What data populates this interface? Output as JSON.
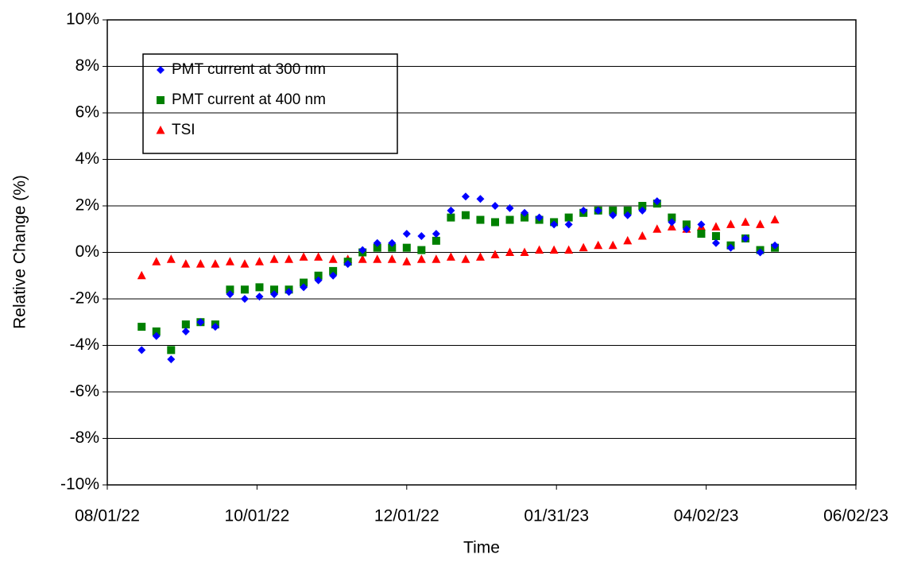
{
  "chart_data": {
    "type": "scatter",
    "x_label": "Time",
    "y_label": "Relative Change (%)",
    "xlim": [
      "2022-08-01",
      "2023-06-02"
    ],
    "xticks": [
      {
        "value": "2022-08-01",
        "label": "08/01/22"
      },
      {
        "value": "2022-10-01",
        "label": "10/01/22"
      },
      {
        "value": "2022-12-01",
        "label": "12/01/22"
      },
      {
        "value": "2023-01-31",
        "label": "01/31/23"
      },
      {
        "value": "2023-04-02",
        "label": "04/02/23"
      },
      {
        "value": "2023-06-02",
        "label": "06/02/23"
      }
    ],
    "ylim": [
      -10,
      10
    ],
    "yticks": [
      {
        "value": -10,
        "label": "-10%"
      },
      {
        "value": -8,
        "label": "-8%"
      },
      {
        "value": -6,
        "label": "-6%"
      },
      {
        "value": -4,
        "label": "-4%"
      },
      {
        "value": -2,
        "label": "-2%"
      },
      {
        "value": 0,
        "label": "0%"
      },
      {
        "value": 2,
        "label": "2%"
      },
      {
        "value": 4,
        "label": "4%"
      },
      {
        "value": 6,
        "label": "6%"
      },
      {
        "value": 8,
        "label": "8%"
      },
      {
        "value": 10,
        "label": "10%"
      }
    ],
    "grid": true,
    "legend": "upper left",
    "x": [
      "2022-08-15",
      "2022-08-21",
      "2022-08-27",
      "2022-09-02",
      "2022-09-08",
      "2022-09-14",
      "2022-09-20",
      "2022-09-26",
      "2022-10-02",
      "2022-10-08",
      "2022-10-14",
      "2022-10-20",
      "2022-10-26",
      "2022-11-01",
      "2022-11-07",
      "2022-11-13",
      "2022-11-19",
      "2022-11-25",
      "2022-12-01",
      "2022-12-07",
      "2022-12-13",
      "2022-12-19",
      "2022-12-25",
      "2022-12-31",
      "2023-01-06",
      "2023-01-12",
      "2023-01-18",
      "2023-01-24",
      "2023-01-30",
      "2023-02-05",
      "2023-02-11",
      "2023-02-17",
      "2023-02-23",
      "2023-03-01",
      "2023-03-07",
      "2023-03-13",
      "2023-03-19",
      "2023-03-25",
      "2023-03-31",
      "2023-04-06",
      "2023-04-12",
      "2023-04-18",
      "2023-04-24",
      "2023-04-30"
    ],
    "series": [
      {
        "name": "PMT current at 300 nm",
        "color": "#0000ff",
        "marker": "diamond",
        "values": [
          -4.2,
          -3.6,
          -4.6,
          -3.4,
          -3.0,
          -3.2,
          -1.8,
          -2.0,
          -1.9,
          -1.8,
          -1.7,
          -1.5,
          -1.2,
          -1.0,
          -0.5,
          0.1,
          0.4,
          0.4,
          0.8,
          0.7,
          0.8,
          1.8,
          2.4,
          2.3,
          2.0,
          1.9,
          1.7,
          1.5,
          1.2,
          1.2,
          1.8,
          1.8,
          1.6,
          1.6,
          1.8,
          2.2,
          1.3,
          1.0,
          1.2,
          0.4,
          0.2,
          0.6,
          0.0,
          0.3
        ]
      },
      {
        "name": "PMT current at 400 nm",
        "color": "#008000",
        "marker": "square",
        "values": [
          -3.2,
          -3.4,
          -4.2,
          -3.1,
          -3.0,
          -3.1,
          -1.6,
          -1.6,
          -1.5,
          -1.6,
          -1.6,
          -1.3,
          -1.0,
          -0.8,
          -0.4,
          0.0,
          0.2,
          0.2,
          0.2,
          0.1,
          0.5,
          1.5,
          1.6,
          1.4,
          1.3,
          1.4,
          1.5,
          1.4,
          1.3,
          1.5,
          1.7,
          1.8,
          1.8,
          1.8,
          2.0,
          2.1,
          1.5,
          1.2,
          0.8,
          0.7,
          0.3,
          0.6,
          0.1,
          0.2
        ]
      },
      {
        "name": "TSI",
        "color": "#ff0000",
        "marker": "triangle",
        "values": [
          -1.0,
          -0.4,
          -0.3,
          -0.5,
          -0.5,
          -0.5,
          -0.4,
          -0.5,
          -0.4,
          -0.3,
          -0.3,
          -0.2,
          -0.2,
          -0.3,
          -0.3,
          -0.3,
          -0.3,
          -0.3,
          -0.4,
          -0.3,
          -0.3,
          -0.2,
          -0.3,
          -0.2,
          -0.1,
          0.0,
          0.0,
          0.1,
          0.1,
          0.1,
          0.2,
          0.3,
          0.3,
          0.5,
          0.7,
          1.0,
          1.1,
          1.0,
          1.1,
          1.1,
          1.2,
          1.3,
          1.2,
          1.4
        ]
      }
    ]
  }
}
